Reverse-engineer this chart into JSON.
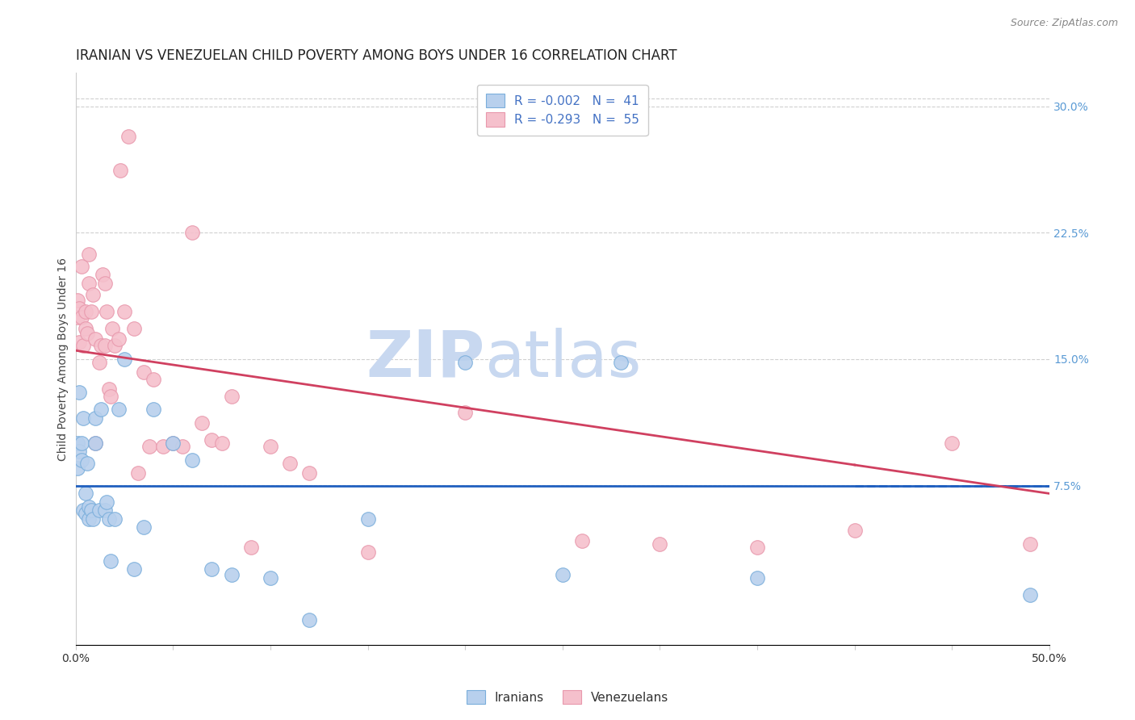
{
  "title": "IRANIAN VS VENEZUELAN CHILD POVERTY AMONG BOYS UNDER 16 CORRELATION CHART",
  "source": "Source: ZipAtlas.com",
  "ylabel": "Child Poverty Among Boys Under 16",
  "xlim": [
    0.0,
    0.5
  ],
  "ylim": [
    -0.02,
    0.32
  ],
  "xticks": [
    0.0,
    0.05,
    0.1,
    0.15,
    0.2,
    0.25,
    0.3,
    0.35,
    0.4,
    0.45,
    0.5
  ],
  "xticklabels": [
    "0.0%",
    "",
    "",
    "",
    "",
    "",
    "",
    "",
    "",
    "",
    "50.0%"
  ],
  "yticks_right": [
    0.075,
    0.15,
    0.225,
    0.3
  ],
  "yticklabels_right": [
    "7.5%",
    "15.0%",
    "22.5%",
    "30.0%"
  ],
  "right_tick_color": "#5b9bd5",
  "grid_color": "#d0d0d0",
  "background_color": "#ffffff",
  "watermark_zip": "ZIP",
  "watermark_atlas": "atlas",
  "watermark_color_zip": "#c8d8f0",
  "watermark_color_atlas": "#c8d8f0",
  "legend_R_Iranian": "R = -0.002",
  "legend_N_Iranian": "N =  41",
  "legend_R_Venezuelan": "R = -0.293",
  "legend_N_Venezuelan": "N =  55",
  "legend_color_Iranian": "#b8d0ed",
  "legend_color_Venezuelan": "#f5c0cc",
  "legend_text_color": "#4472c4",
  "scatter_color_Iranian": "#b8d0ed",
  "scatter_color_Venezuelan": "#f5c0cc",
  "scatter_edge_Iranian": "#7aaedb",
  "scatter_edge_Venezuelan": "#e898ac",
  "scatter_size": 160,
  "line_color_Iranian": "#2060c0",
  "line_color_Venezuelan": "#d04060",
  "title_fontsize": 12,
  "axis_label_fontsize": 10,
  "tick_fontsize": 10,
  "iranian_x": [
    0.001,
    0.001,
    0.002,
    0.002,
    0.003,
    0.003,
    0.004,
    0.004,
    0.005,
    0.005,
    0.006,
    0.007,
    0.007,
    0.008,
    0.009,
    0.01,
    0.01,
    0.012,
    0.013,
    0.015,
    0.016,
    0.017,
    0.018,
    0.02,
    0.022,
    0.025,
    0.03,
    0.035,
    0.04,
    0.05,
    0.06,
    0.07,
    0.08,
    0.1,
    0.12,
    0.15,
    0.2,
    0.25,
    0.28,
    0.35,
    0.49
  ],
  "iranian_y": [
    0.1,
    0.085,
    0.13,
    0.095,
    0.09,
    0.1,
    0.06,
    0.115,
    0.058,
    0.07,
    0.088,
    0.055,
    0.062,
    0.06,
    0.055,
    0.1,
    0.115,
    0.06,
    0.12,
    0.06,
    0.065,
    0.055,
    0.03,
    0.055,
    0.12,
    0.15,
    0.025,
    0.05,
    0.12,
    0.1,
    0.09,
    0.025,
    0.022,
    0.02,
    -0.005,
    0.055,
    0.148,
    0.022,
    0.148,
    0.02,
    0.01
  ],
  "venezuelan_x": [
    0.001,
    0.001,
    0.002,
    0.002,
    0.003,
    0.003,
    0.004,
    0.005,
    0.005,
    0.006,
    0.007,
    0.007,
    0.008,
    0.009,
    0.01,
    0.01,
    0.012,
    0.013,
    0.014,
    0.015,
    0.015,
    0.016,
    0.017,
    0.018,
    0.019,
    0.02,
    0.022,
    0.023,
    0.025,
    0.027,
    0.03,
    0.032,
    0.035,
    0.038,
    0.04,
    0.045,
    0.05,
    0.055,
    0.06,
    0.065,
    0.07,
    0.075,
    0.08,
    0.09,
    0.1,
    0.11,
    0.12,
    0.15,
    0.2,
    0.26,
    0.3,
    0.35,
    0.4,
    0.45,
    0.49
  ],
  "venezuelan_y": [
    0.185,
    0.175,
    0.18,
    0.16,
    0.175,
    0.205,
    0.158,
    0.168,
    0.178,
    0.165,
    0.212,
    0.195,
    0.178,
    0.188,
    0.162,
    0.1,
    0.148,
    0.158,
    0.2,
    0.158,
    0.195,
    0.178,
    0.132,
    0.128,
    0.168,
    0.158,
    0.162,
    0.262,
    0.178,
    0.282,
    0.168,
    0.082,
    0.142,
    0.098,
    0.138,
    0.098,
    0.1,
    0.098,
    0.225,
    0.112,
    0.102,
    0.1,
    0.128,
    0.038,
    0.098,
    0.088,
    0.082,
    0.035,
    0.118,
    0.042,
    0.04,
    0.038,
    0.048,
    0.1,
    0.04
  ],
  "iranian_line_y0": 0.0745,
  "iranian_line_y1": 0.0745,
  "venezuelan_line_y0": 0.155,
  "venezuelan_line_y1": 0.07
}
